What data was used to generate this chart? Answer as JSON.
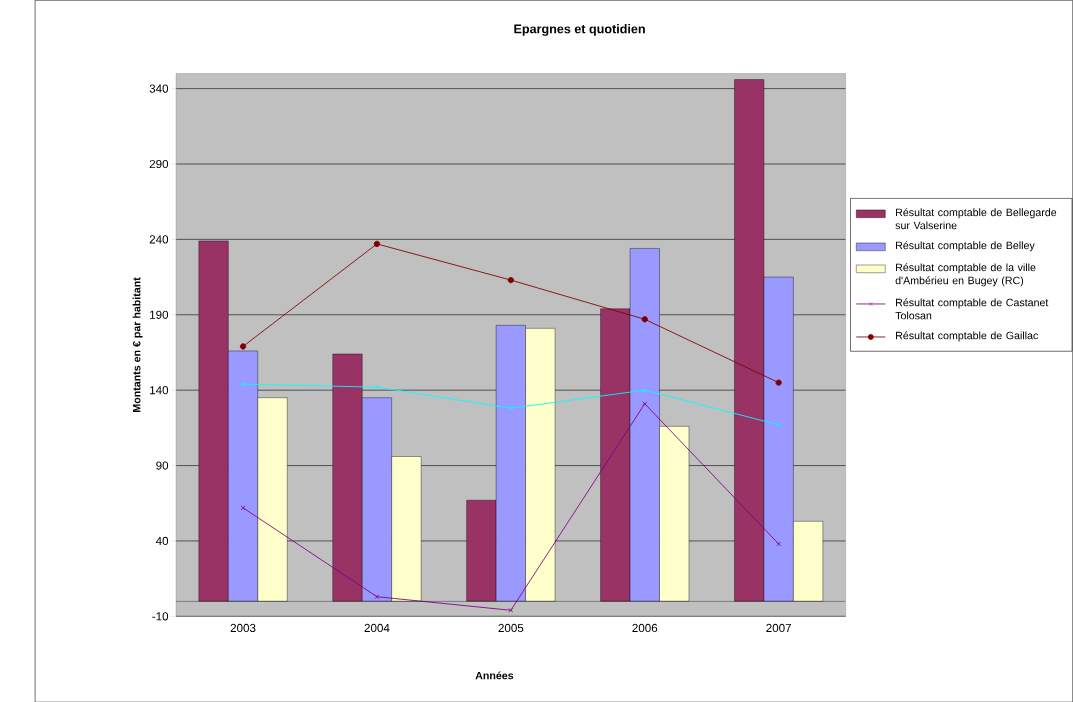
{
  "chart_data": {
    "type": "bar",
    "title": "Epargnes et quotidien",
    "xlabel": "Années",
    "ylabel": "Montants en € par habitant",
    "categories": [
      "2003",
      "2004",
      "2005",
      "2006",
      "2007"
    ],
    "series": [
      {
        "name": "Résultat comptable de Bellegarde sur Valserine",
        "color": "#993366",
        "values": [
          239,
          164,
          67,
          194,
          346
        ]
      },
      {
        "name": "Résultat comptable de Belley",
        "color": "#9999ff",
        "values": [
          166,
          135,
          183,
          234,
          215
        ]
      },
      {
        "name": "Résultat comptable de la ville d'Ambérieu en Bugey (RC)",
        "color": "#ffffcc",
        "values": [
          135,
          96,
          181,
          116,
          53
        ]
      },
      {
        "name": "Résultat comptable de Castanet Tolosan",
        "type": "line",
        "marker": "cross",
        "color": "#800080",
        "values": [
          62,
          3,
          -6,
          131,
          38
        ]
      },
      {
        "name": "Résultat comptable de Gaillac",
        "type": "line",
        "marker": "circle",
        "color": "#800000",
        "values": [
          169,
          237,
          213,
          187,
          145
        ]
      },
      {
        "type": "line",
        "marker": "cross",
        "color": "#00ffff",
        "values": [
          144,
          142,
          128,
          140,
          117
        ]
      }
    ],
    "ylim": [
      -10,
      350
    ],
    "yticks": [
      -10,
      40,
      90,
      140,
      190,
      240,
      290,
      340
    ],
    "grid": "y",
    "legend": "right"
  }
}
